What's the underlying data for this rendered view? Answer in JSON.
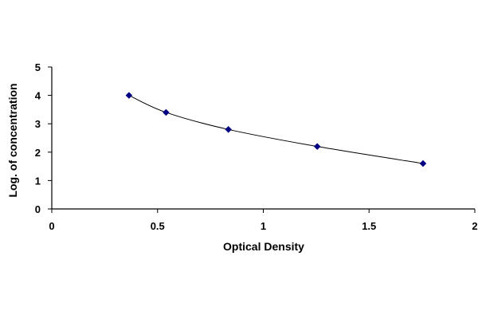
{
  "chart_data": {
    "type": "scatter",
    "title": "",
    "xlabel": "Optical Density",
    "ylabel": "Log. of concentration",
    "xlim": [
      0,
      2
    ],
    "ylim": [
      0,
      5
    ],
    "xticks": [
      "0",
      "0.5",
      "1",
      "1.5",
      "2"
    ],
    "yticks": [
      "0",
      "1",
      "2",
      "3",
      "4",
      "5"
    ],
    "xtick_values": [
      0,
      0.5,
      1,
      1.5,
      2
    ],
    "ytick_values": [
      0,
      1,
      2,
      3,
      4,
      5
    ],
    "grid": false,
    "legend": "none",
    "series": [
      {
        "marker": "diamond",
        "line": "smooth",
        "color": "#000080",
        "points": [
          {
            "x": 0.365,
            "y": 4.0
          },
          {
            "x": 0.54,
            "y": 3.4
          },
          {
            "x": 0.835,
            "y": 2.8
          },
          {
            "x": 1.255,
            "y": 2.2
          },
          {
            "x": 1.755,
            "y": 1.6
          }
        ]
      }
    ]
  }
}
